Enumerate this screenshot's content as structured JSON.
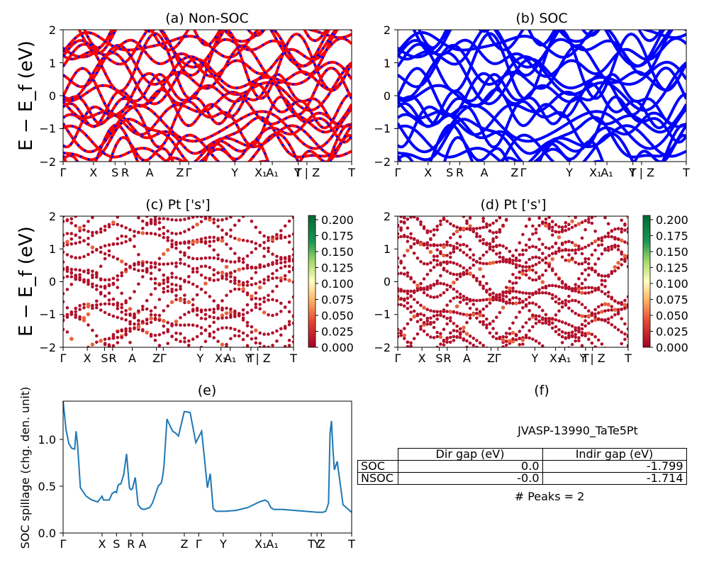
{
  "panels": {
    "a": {
      "title": "(a) Non-SOC",
      "ylabel": "E − E_f (eV)",
      "yticks": [
        "2",
        "1",
        "0",
        "−1",
        "−2"
      ],
      "kpoints": [
        "Γ",
        "X",
        "S",
        "R",
        "A",
        "Z",
        "Γ",
        "Y",
        "X₁",
        "A₁",
        "T",
        "Y | Z",
        "T"
      ],
      "colors": [
        "#ff0000",
        "#0000ff"
      ]
    },
    "b": {
      "title": "(b) SOC",
      "yticks": [
        "2",
        "1",
        "0",
        "−1",
        "−2"
      ],
      "kpoints": [
        "Γ",
        "X",
        "S",
        "R",
        "A",
        "Z",
        "Γ",
        "Y",
        "X₁",
        "A₁",
        "T",
        "Y | Z",
        "T"
      ],
      "colors": [
        "#0000ff"
      ]
    },
    "c": {
      "title": "(c)  Pt ['s']",
      "ylabel": "E − E_f (eV)",
      "yticks": [
        "2",
        "1",
        "0",
        "−1",
        "−2"
      ],
      "kpoints": [
        "Γ",
        "X",
        "S",
        "R",
        "A",
        "Z",
        "Γ",
        "Y",
        "X₁",
        "A₁",
        "T",
        "Y | Z",
        "T"
      ],
      "colorbar_ticks": [
        "0.200",
        "0.175",
        "0.150",
        "0.125",
        "0.100",
        "0.075",
        "0.050",
        "0.025",
        "0.000"
      ]
    },
    "d": {
      "title": "(d) Pt ['s']",
      "yticks": [
        "2",
        "1",
        "0",
        "−1",
        "−2"
      ],
      "kpoints": [
        "Γ",
        "X",
        "S",
        "R",
        "A",
        "Z",
        "Γ",
        "Y",
        "X₁",
        "A₁",
        "T",
        "Y | Z",
        "T"
      ],
      "colorbar_ticks": [
        "0.200",
        "0.175",
        "0.150",
        "0.125",
        "0.100",
        "0.075",
        "0.050",
        "0.025",
        "0.000"
      ]
    },
    "e": {
      "title": "(e)",
      "ylabel": "SOC spillage (chg. den. unit)",
      "yticks": [
        "1.0",
        "0.5",
        "0.0"
      ],
      "kpoints": [
        "Γ",
        "X",
        "S",
        "R",
        "A",
        "Z",
        "Γ",
        "Y",
        "X₁",
        "A₁",
        "T",
        "Y",
        "Z",
        "T"
      ]
    },
    "f": {
      "title": "(f)",
      "material": "JVASP-13990_TaTe5Pt",
      "table_header": [
        "Dir gap (eV)",
        "Indir gap (eV)"
      ],
      "rows": [
        {
          "label": "SOC",
          "dir": "0.0",
          "indir": "-1.799"
        },
        {
          "label": "NSOC",
          "dir": "-0.0",
          "indir": "-1.714"
        }
      ],
      "peaks": "# Peaks = 2"
    }
  },
  "chart_data": [
    {
      "type": "line",
      "title": "(a) Non-SOC",
      "ylabel": "E − E_f (eV)",
      "ylim": [
        -2,
        2
      ],
      "series": [
        {
          "name": "",
          "color": "#ff0000"
        },
        {
          "name": "",
          "color": "#0000ff"
        }
      ]
    },
    {
      "type": "line",
      "title": "(b) SOC",
      "ylim": [
        -2,
        2
      ],
      "series": [
        {
          "name": "",
          "color": "#0000ff"
        }
      ]
    },
    {
      "type": "scatter",
      "title": "(c)  Pt ['s']",
      "ylim": [
        -2,
        2
      ],
      "colorbar_range": [
        0.0,
        0.2
      ]
    },
    {
      "type": "scatter",
      "title": "(d) Pt ['s']",
      "ylim": [
        -2,
        2
      ],
      "colorbar_range": [
        0.0,
        0.2
      ]
    },
    {
      "type": "line",
      "title": "(e)",
      "ylabel": "SOC spillage (chg. den. unit)",
      "ylim": [
        0.0,
        1.4
      ],
      "series": [
        {
          "name": "",
          "color": "#1f77b4",
          "x": [
            0.0,
            0.01,
            0.02,
            0.03,
            0.04,
            0.045,
            0.05,
            0.06,
            0.08,
            0.1,
            0.12,
            0.135,
            0.14,
            0.15,
            0.16,
            0.17,
            0.18,
            0.185,
            0.19,
            0.195,
            0.2,
            0.21,
            0.22,
            0.23,
            0.235,
            0.24,
            0.25,
            0.26,
            0.27,
            0.28,
            0.29,
            0.3,
            0.31,
            0.33,
            0.34,
            0.345,
            0.35,
            0.36,
            0.37,
            0.38,
            0.385,
            0.39,
            0.4,
            0.42,
            0.44,
            0.46,
            0.48,
            0.49,
            0.5,
            0.51,
            0.52,
            0.53,
            0.54,
            0.545,
            0.55,
            0.56,
            0.6,
            0.64,
            0.68,
            0.7,
            0.71,
            0.72,
            0.73,
            0.74,
            0.76,
            0.8,
            0.84,
            0.88,
            0.9,
            0.91,
            0.915,
            0.92,
            0.925,
            0.93,
            0.935,
            0.94,
            0.95,
            0.97,
            1.0
          ],
          "y": [
            1.4,
            1.1,
            0.95,
            0.9,
            0.89,
            1.08,
            0.95,
            0.48,
            0.39,
            0.35,
            0.33,
            0.39,
            0.35,
            0.35,
            0.35,
            0.42,
            0.44,
            0.43,
            0.5,
            0.52,
            0.52,
            0.62,
            0.84,
            0.48,
            0.46,
            0.47,
            0.59,
            0.3,
            0.26,
            0.25,
            0.26,
            0.27,
            0.32,
            0.5,
            0.53,
            0.6,
            0.72,
            1.21,
            1.14,
            1.08,
            1.07,
            1.06,
            1.03,
            1.29,
            1.28,
            0.96,
            1.08,
            0.79,
            0.48,
            0.63,
            0.26,
            0.23,
            0.23,
            0.23,
            0.23,
            0.23,
            0.24,
            0.27,
            0.33,
            0.35,
            0.33,
            0.27,
            0.25,
            0.25,
            0.25,
            0.24,
            0.23,
            0.22,
            0.22,
            0.23,
            0.27,
            0.32,
            1.06,
            1.19,
            0.9,
            0.67,
            0.76,
            0.3,
            0.22
          ]
        }
      ]
    },
    {
      "type": "table",
      "title": "(f)",
      "columns": [
        "",
        "Dir gap (eV)",
        "Indir gap (eV)"
      ],
      "rows": [
        [
          "SOC",
          "0.0",
          "-1.799"
        ],
        [
          "NSOC",
          "-0.0",
          "-1.714"
        ]
      ]
    }
  ]
}
